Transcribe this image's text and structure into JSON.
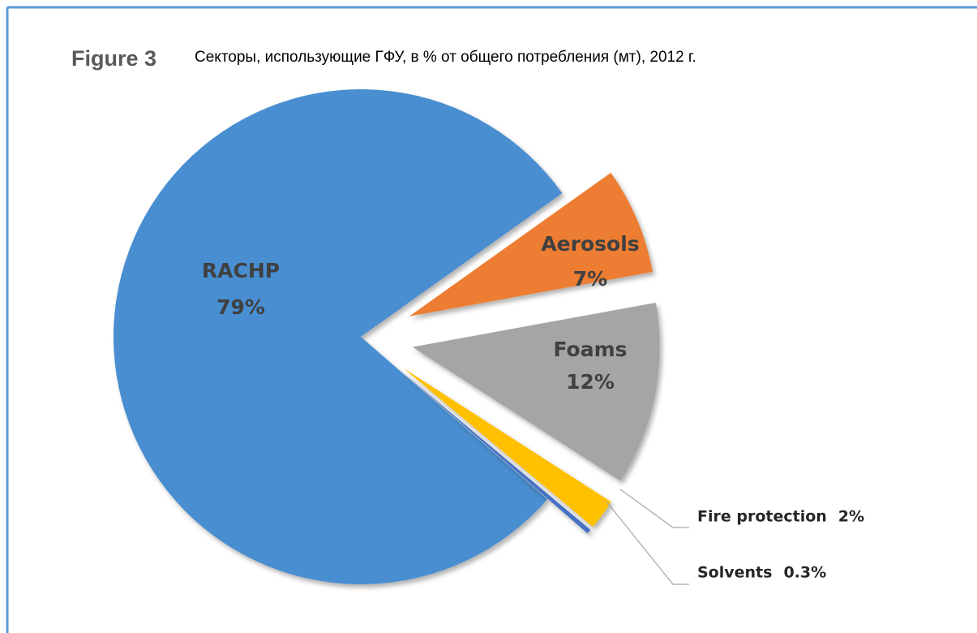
{
  "chart_data": {
    "type": "pie",
    "title": "Figure 3",
    "subtitle": "Секторы, использующие ГФУ, в % от общего потребления (мт), 2012 г.",
    "categories": [
      "RACHP",
      "Aerosols",
      "Foams",
      "Fire protection",
      "Solvents"
    ],
    "values": [
      79,
      7,
      12,
      2,
      0.3
    ],
    "value_labels": [
      "79%",
      "7%",
      "12%",
      "2%",
      "0.3%"
    ],
    "colors": [
      "#4a8ed0",
      "#ed7d31",
      "#a5a5a5",
      "#ffc000",
      "#4472c4"
    ]
  }
}
